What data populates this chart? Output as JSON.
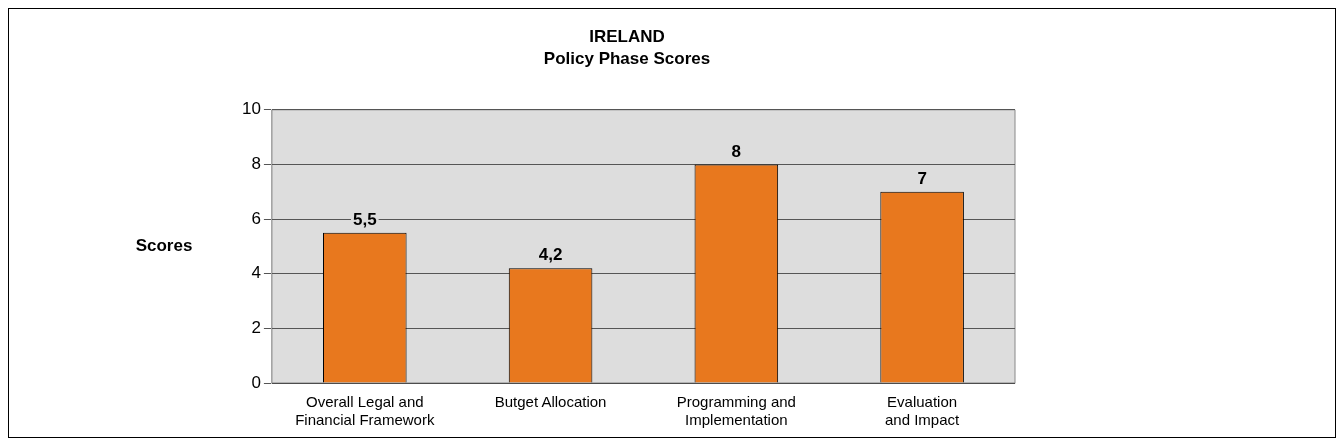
{
  "chart_data": {
    "type": "bar",
    "title": "IRELAND",
    "subtitle": "Policy Phase Scores",
    "ylabel": "Scores",
    "categories": [
      "Overall Legal and Financial Framework",
      "Butget Allocation",
      "Programming and Implementation",
      "Evaluation and Impact"
    ],
    "values": [
      5.5,
      4.2,
      8,
      7
    ],
    "color": "#e8781e",
    "value_labels": [
      "5,5",
      "4,2",
      "8",
      "7"
    ],
    "ylim": [
      0,
      10
    ],
    "yticks": [
      0,
      2,
      4,
      6,
      8,
      10
    ],
    "grid": "y",
    "legend": false
  }
}
